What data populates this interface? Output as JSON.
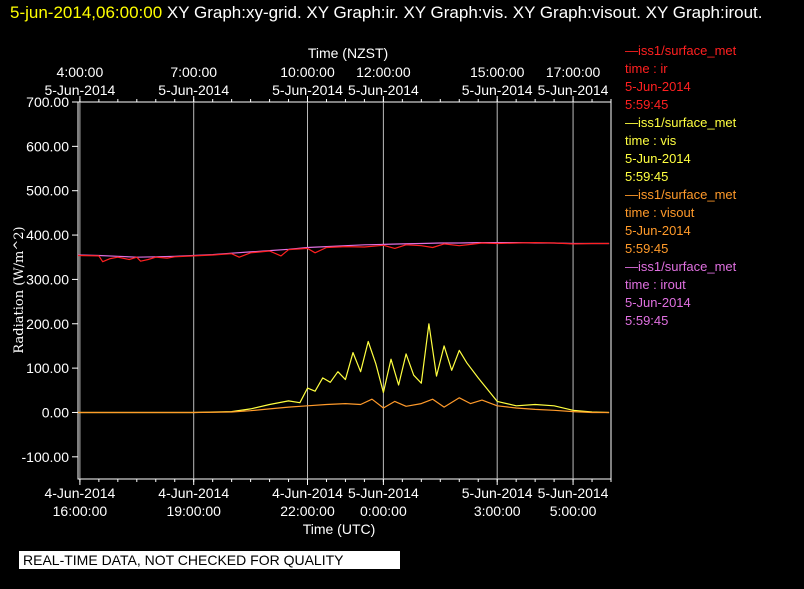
{
  "header": {
    "datetime": "5-jun-2014,06:00:00",
    "graphs": " XY Graph:xy-grid.  XY Graph:ir.  XY Graph:vis.  XY Graph:visout.  XY Graph:irout."
  },
  "disclaimer": "REAL-TIME DATA, NOT CHECKED FOR QUALITY",
  "legend": [
    {
      "source": "—iss1/surface_met",
      "var": "time : ir",
      "date": "5-Jun-2014",
      "time": "5:59:45",
      "color": "#ff2020"
    },
    {
      "source": "—iss1/surface_met",
      "var": "time : vis",
      "date": "5-Jun-2014",
      "time": "5:59:45",
      "color": "#ffff40"
    },
    {
      "source": "—iss1/surface_met",
      "var": "time : visout",
      "date": "5-Jun-2014",
      "time": "5:59:45",
      "color": "#ff9a2a"
    },
    {
      "source": "—iss1/surface_met",
      "var": "time : irout",
      "date": "5-Jun-2014",
      "time": "5:59:45",
      "color": "#e070e0"
    }
  ],
  "chart_data": {
    "type": "line",
    "title": "",
    "xlabel": "Time (UTC)",
    "x2label": "Time (NZST)",
    "ylabel": "Radiation (W/m^2)",
    "xlim": [
      15.95,
      30.0
    ],
    "ylim": [
      -150,
      700
    ],
    "y_ticks": [
      -100,
      0,
      100,
      200,
      300,
      400,
      500,
      600,
      700
    ],
    "y_tick_labels": [
      "-100.00",
      "0.00",
      "100.00",
      "200.00",
      "300.00",
      "400.00",
      "500.00",
      "600.00",
      "700.00"
    ],
    "x_ticks": [
      {
        "x": 16,
        "date": "4-Jun-2014",
        "time": "16:00:00"
      },
      {
        "x": 19,
        "date": "4-Jun-2014",
        "time": "19:00:00"
      },
      {
        "x": 22,
        "date": "4-Jun-2014",
        "time": "22:00:00"
      },
      {
        "x": 24,
        "date": "5-Jun-2014",
        "time": "0:00:00"
      },
      {
        "x": 27,
        "date": "5-Jun-2014",
        "time": "3:00:00"
      },
      {
        "x": 29,
        "date": "5-Jun-2014",
        "time": "5:00:00"
      }
    ],
    "x2_ticks": [
      {
        "x": 16,
        "time": "4:00:00",
        "date": "5-Jun-2014"
      },
      {
        "x": 19,
        "time": "7:00:00",
        "date": "5-Jun-2014"
      },
      {
        "x": 22,
        "time": "10:00:00",
        "date": "5-Jun-2014"
      },
      {
        "x": 24,
        "time": "12:00:00",
        "date": "5-Jun-2014"
      },
      {
        "x": 27,
        "time": "15:00:00",
        "date": "5-Jun-2014"
      },
      {
        "x": 29,
        "time": "17:00:00",
        "date": "5-Jun-2014"
      }
    ],
    "grid_x": true,
    "legend_position": "right",
    "series": [
      {
        "id": "irout",
        "color": "#e070e0",
        "x": [
          15.95,
          16.5,
          17,
          17.5,
          18,
          18.5,
          19,
          19.5,
          20,
          20.5,
          21,
          21.5,
          22,
          22.5,
          23,
          23.5,
          24,
          24.5,
          25,
          25.5,
          26,
          26.5,
          27,
          27.5,
          28,
          28.5,
          29,
          29.5,
          29.95
        ],
        "y": [
          355,
          354,
          352,
          350,
          351,
          352,
          354,
          356,
          359,
          362,
          365,
          368,
          372,
          374,
          376,
          378,
          379,
          380,
          381,
          382,
          382,
          383,
          383,
          383,
          382,
          382,
          381,
          381,
          381
        ]
      },
      {
        "id": "ir",
        "color": "#ff2020",
        "x": [
          15.95,
          16.5,
          16.6,
          16.8,
          17,
          17.3,
          17.5,
          17.6,
          17.8,
          18,
          18.3,
          18.5,
          19,
          19.5,
          20,
          20.2,
          20.5,
          21,
          21.3,
          21.5,
          22,
          22.2,
          22.5,
          23,
          23.5,
          24,
          24.3,
          24.6,
          25,
          25.3,
          25.6,
          26,
          26.3,
          26.6,
          27,
          27.5,
          28,
          28.5,
          29,
          29.5,
          29.95
        ],
        "y": [
          354,
          353,
          340,
          347,
          350,
          345,
          350,
          341,
          345,
          350,
          348,
          351,
          353,
          355,
          358,
          350,
          360,
          364,
          353,
          367,
          370,
          360,
          372,
          374,
          373,
          377,
          370,
          378,
          376,
          372,
          380,
          376,
          379,
          382,
          381,
          382,
          383,
          382,
          380,
          381,
          381
        ]
      },
      {
        "id": "vis",
        "color": "#ffff40",
        "x": [
          15.95,
          17,
          18,
          19,
          20,
          20.5,
          21,
          21.5,
          21.8,
          22,
          22.2,
          22.4,
          22.6,
          22.8,
          23,
          23.2,
          23.4,
          23.6,
          23.8,
          24,
          24.2,
          24.4,
          24.6,
          24.8,
          25,
          25.2,
          25.4,
          25.6,
          25.8,
          26,
          26.2,
          26.5,
          27,
          27.5,
          28,
          28.5,
          29,
          29.5,
          29.95
        ],
        "y": [
          0,
          0,
          0,
          0,
          2,
          8,
          18,
          26,
          22,
          55,
          48,
          78,
          68,
          92,
          74,
          135,
          92,
          160,
          110,
          45,
          120,
          62,
          132,
          84,
          66,
          200,
          82,
          150,
          95,
          140,
          112,
          78,
          25,
          15,
          18,
          15,
          5,
          1,
          0
        ]
      },
      {
        "id": "visout",
        "color": "#ff9a2a",
        "x": [
          15.95,
          17,
          18,
          19,
          20,
          20.5,
          21,
          21.5,
          22,
          22.5,
          23,
          23.4,
          23.7,
          24,
          24.3,
          24.6,
          25,
          25.3,
          25.6,
          26,
          26.3,
          26.6,
          27,
          27.5,
          28,
          28.5,
          29,
          29.5,
          29.95
        ],
        "y": [
          0,
          0,
          0,
          0,
          1,
          4,
          8,
          12,
          15,
          18,
          20,
          18,
          30,
          10,
          25,
          14,
          20,
          30,
          12,
          33,
          20,
          28,
          15,
          10,
          7,
          5,
          2,
          0,
          0
        ]
      }
    ]
  }
}
